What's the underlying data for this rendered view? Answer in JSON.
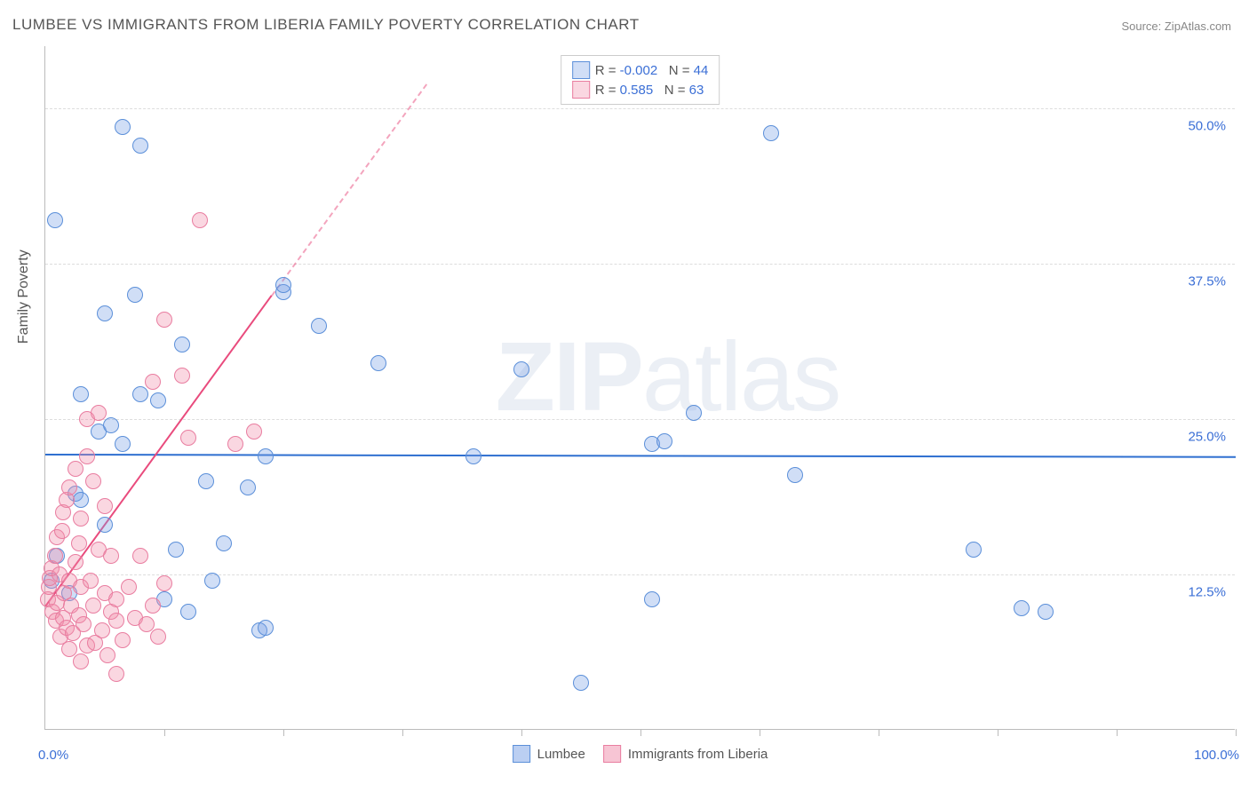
{
  "title": "LUMBEE VS IMMIGRANTS FROM LIBERIA FAMILY POVERTY CORRELATION CHART",
  "source_label": "Source: ZipAtlas.com",
  "y_axis_title": "Family Poverty",
  "watermark_bold": "ZIP",
  "watermark_rest": "atlas",
  "chart": {
    "type": "scatter",
    "background_color": "#ffffff",
    "grid_color": "#dddddd",
    "axis_color": "#bbbbbb",
    "xlim": [
      0,
      100
    ],
    "ylim": [
      0,
      55
    ],
    "x_tick_positions": [
      10,
      20,
      30,
      40,
      50,
      60,
      70,
      80,
      90,
      100
    ],
    "x_tick_labels_visible": {
      "0": "0.0%",
      "100": "100.0%"
    },
    "x_label_color": "#3b6fd6",
    "y_gridlines": [
      12.5,
      25.0,
      37.5,
      50.0
    ],
    "y_tick_labels": [
      "12.5%",
      "25.0%",
      "37.5%",
      "50.0%"
    ],
    "y_label_color": "#3b6fd6",
    "marker_radius": 9,
    "marker_border_width": 1.5,
    "series": [
      {
        "name": "Lumbee",
        "fill": "rgba(120,160,230,0.35)",
        "stroke": "#5b8fd9",
        "R_label": "R = ",
        "R_value": "-0.002",
        "N_label": "N = ",
        "N_value": "44",
        "stat_color": "#3b6fd6",
        "trend": {
          "x1": 0,
          "y1": 22.2,
          "x2": 100,
          "y2": 22.0,
          "color": "#2e6fd0",
          "width": 2.5,
          "dashed": false,
          "extend_dashed": false
        },
        "points": [
          [
            0.8,
            41
          ],
          [
            3,
            27
          ],
          [
            6.5,
            48.5
          ],
          [
            8,
            47
          ],
          [
            4.5,
            24
          ],
          [
            5.5,
            24.5
          ],
          [
            5,
            16.5
          ],
          [
            8,
            27
          ],
          [
            9.5,
            26.5
          ],
          [
            11.5,
            31
          ],
          [
            12,
            9.5
          ],
          [
            13.5,
            20
          ],
          [
            15,
            15
          ],
          [
            17,
            19.5
          ],
          [
            18,
            8
          ],
          [
            18.5,
            22
          ],
          [
            20,
            35.2
          ],
          [
            20,
            35.8
          ],
          [
            23,
            32.5
          ],
          [
            28,
            29.5
          ],
          [
            36,
            22
          ],
          [
            40,
            29
          ],
          [
            45,
            3.8
          ],
          [
            51,
            23
          ],
          [
            51,
            10.5
          ],
          [
            54.5,
            25.5
          ],
          [
            63,
            20.5
          ],
          [
            61,
            48
          ],
          [
            78,
            14.5
          ],
          [
            82,
            9.8
          ],
          [
            84,
            9.5
          ],
          [
            5,
            33.5
          ],
          [
            2.5,
            19
          ],
          [
            1,
            14
          ],
          [
            2,
            11
          ],
          [
            0.5,
            12
          ],
          [
            3,
            18.5
          ],
          [
            6.5,
            23
          ],
          [
            7.5,
            35
          ],
          [
            11,
            14.5
          ],
          [
            14,
            12
          ],
          [
            18.5,
            8.2
          ],
          [
            52,
            23.2
          ],
          [
            10,
            10.5
          ]
        ]
      },
      {
        "name": "Immigrants from Liberia",
        "fill": "rgba(240,140,170,0.35)",
        "stroke": "#e97da0",
        "R_label": "R = ",
        "R_value": " 0.585",
        "N_label": "N = ",
        "N_value": "63",
        "stat_color": "#3b6fd6",
        "trend": {
          "x1": 0,
          "y1": 10,
          "x2": 19,
          "y2": 35,
          "color": "#e94b7d",
          "width": 2.5,
          "dashed": false,
          "extend_dashed": true,
          "ext_x2": 32,
          "ext_y2": 52
        },
        "points": [
          [
            0.2,
            10.5
          ],
          [
            0.3,
            11.5
          ],
          [
            0.4,
            12.2
          ],
          [
            0.5,
            13
          ],
          [
            0.6,
            9.5
          ],
          [
            0.8,
            14
          ],
          [
            0.9,
            8.8
          ],
          [
            1,
            10.2
          ],
          [
            1,
            15.5
          ],
          [
            1.2,
            12.5
          ],
          [
            1.3,
            7.5
          ],
          [
            1.4,
            16
          ],
          [
            1.5,
            9
          ],
          [
            1.5,
            17.5
          ],
          [
            1.6,
            11
          ],
          [
            1.8,
            8.2
          ],
          [
            1.8,
            18.5
          ],
          [
            2,
            6.5
          ],
          [
            2,
            12
          ],
          [
            2,
            19.5
          ],
          [
            2.2,
            10
          ],
          [
            2.3,
            7.8
          ],
          [
            2.5,
            13.5
          ],
          [
            2.5,
            21
          ],
          [
            2.8,
            9.2
          ],
          [
            2.8,
            15
          ],
          [
            3,
            5.5
          ],
          [
            3,
            17
          ],
          [
            3,
            11.5
          ],
          [
            3.2,
            8.5
          ],
          [
            3.5,
            25
          ],
          [
            3.5,
            22
          ],
          [
            3.5,
            6.8
          ],
          [
            3.8,
            12
          ],
          [
            4,
            20
          ],
          [
            4,
            10
          ],
          [
            4.2,
            7
          ],
          [
            4.5,
            14.5
          ],
          [
            4.5,
            25.5
          ],
          [
            4.8,
            8
          ],
          [
            5,
            11
          ],
          [
            5,
            18
          ],
          [
            5.2,
            6
          ],
          [
            5.5,
            9.5
          ],
          [
            5.5,
            14
          ],
          [
            6,
            10.5
          ],
          [
            6,
            8.8
          ],
          [
            6.5,
            7.2
          ],
          [
            7,
            11.5
          ],
          [
            7.5,
            9
          ],
          [
            8,
            14
          ],
          [
            8.5,
            8.5
          ],
          [
            9,
            10
          ],
          [
            9,
            28
          ],
          [
            9.5,
            7.5
          ],
          [
            10,
            33
          ],
          [
            10,
            11.8
          ],
          [
            11.5,
            28.5
          ],
          [
            12,
            23.5
          ],
          [
            13,
            41
          ],
          [
            16,
            23
          ],
          [
            17.5,
            24
          ],
          [
            6,
            4.5
          ]
        ]
      }
    ],
    "legend_bottom": [
      {
        "swatch_fill": "rgba(120,160,230,0.5)",
        "swatch_border": "#5b8fd9",
        "label": "Lumbee"
      },
      {
        "swatch_fill": "rgba(240,140,170,0.5)",
        "swatch_border": "#e97da0",
        "label": "Immigrants from Liberia"
      }
    ]
  }
}
